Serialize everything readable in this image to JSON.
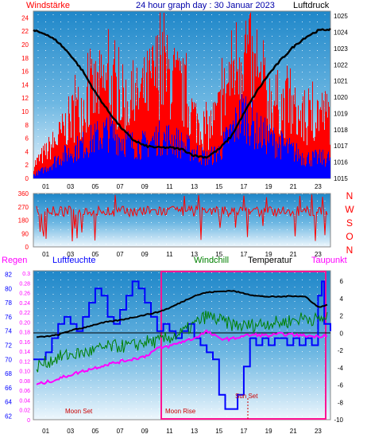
{
  "page": {
    "title": "24 hour graph day : 30 Januar 2023"
  },
  "chart_data": [
    {
      "id": "wind",
      "type": "bar",
      "labels": {
        "left": "Windstärke",
        "right": "Luftdruck"
      },
      "x_ticks": [
        "01",
        "03",
        "05",
        "07",
        "09",
        "11",
        "13",
        "15",
        "17",
        "19",
        "21",
        "23"
      ],
      "y_left_ticks": [
        "0",
        "2",
        "4",
        "6",
        "8",
        "10",
        "12",
        "14",
        "16",
        "18",
        "20",
        "22",
        "24"
      ],
      "y_right_ticks": [
        "1015",
        "1016",
        "1017",
        "1018",
        "1019",
        "1020",
        "1021",
        "1022",
        "1023",
        "1024",
        "1025"
      ],
      "ylim_left": [
        0,
        25
      ],
      "ylim_right": [
        1015,
        1025.3
      ],
      "series": [
        {
          "name": "gust",
          "color": "#ff0000",
          "hour_values": [
            2,
            4,
            6,
            9,
            11,
            13,
            14,
            12,
            11,
            13,
            16,
            15,
            13,
            9,
            7,
            10,
            16,
            20,
            14,
            12,
            11,
            10,
            8,
            10,
            9
          ]
        },
        {
          "name": "wind",
          "color": "#0000ff",
          "hour_values": [
            0.5,
            1.5,
            3,
            4,
            5,
            6,
            7,
            6,
            5,
            5,
            6,
            6,
            5,
            4,
            3,
            4,
            7,
            10,
            7,
            6,
            5,
            4,
            3,
            3,
            3
          ]
        },
        {
          "name": "pressure",
          "color": "#000000",
          "points": [
            [
              0,
              1024.1
            ],
            [
              1,
              1023.9
            ],
            [
              2,
              1023.4
            ],
            [
              3,
              1022.6
            ],
            [
              4,
              1021.6
            ],
            [
              5,
              1020.3
            ],
            [
              6,
              1019.2
            ],
            [
              7,
              1018.2
            ],
            [
              8,
              1017.4
            ],
            [
              9,
              1017.0
            ],
            [
              10,
              1016.9
            ],
            [
              11,
              1016.9
            ],
            [
              12,
              1016.8
            ],
            [
              13,
              1016.4
            ],
            [
              14,
              1016.3
            ],
            [
              15,
              1016.8
            ],
            [
              16,
              1017.6
            ],
            [
              17,
              1019.0
            ],
            [
              18,
              1020.3
            ],
            [
              19,
              1021.4
            ],
            [
              20,
              1022.3
            ],
            [
              21,
              1023.1
            ],
            [
              22,
              1023.7
            ],
            [
              23,
              1024.1
            ],
            [
              24,
              1024.2
            ]
          ]
        }
      ]
    },
    {
      "id": "direction",
      "type": "line",
      "x_ticks": [
        "01",
        "03",
        "05",
        "07",
        "09",
        "11",
        "13",
        "15",
        "17",
        "19",
        "21",
        "23"
      ],
      "y_ticks": [
        "0",
        "90",
        "180",
        "270",
        "360"
      ],
      "right_letters": [
        "N",
        "W",
        "S",
        "O",
        "N"
      ],
      "ylim": [
        0,
        360
      ],
      "series": [
        {
          "name": "direction",
          "color": "#ff0000",
          "center": 240,
          "spread": 35
        }
      ]
    },
    {
      "id": "temp",
      "type": "line",
      "labels": {
        "regen": "Regen",
        "luftfeuchte": "Luftfeuchte",
        "windchill": "Windchill",
        "temperatur": "Temperatur",
        "taupunkt": "Taupunkt"
      },
      "annotations": [
        "Moon Set",
        "Moon Rise",
        "Sun Set"
      ],
      "x_ticks": [
        "01",
        "03",
        "05",
        "07",
        "09",
        "11",
        "13",
        "15",
        "17",
        "19",
        "21",
        "23"
      ],
      "y_rain_ticks": [
        "0",
        "0.02",
        "0.04",
        "0.06",
        "0.08",
        "0.10",
        "0.12",
        "0.14",
        "0.16",
        "0.18",
        "0.20",
        "0.22",
        "0.24",
        "0.26",
        "0.28",
        "0.3"
      ],
      "y_humidity_ticks": [
        "62",
        "64",
        "66",
        "68",
        "70",
        "72",
        "74",
        "76",
        "78",
        "80",
        "82"
      ],
      "y_temp_ticks": [
        "-10",
        "-8",
        "-6",
        "-4",
        "-2",
        "0",
        "2",
        "4",
        "6"
      ],
      "ylim_temp": [
        -10,
        7.2
      ],
      "ylim_humidity": [
        61.5,
        82.5
      ],
      "series": [
        {
          "name": "Luftfeuchte",
          "color": "#0000ff",
          "points": [
            [
              0,
              70
            ],
            [
              1,
              71
            ],
            [
              1.5,
              73
            ],
            [
              2,
              75
            ],
            [
              2.5,
              76
            ],
            [
              3,
              75
            ],
            [
              3.5,
              74
            ],
            [
              4,
              76
            ],
            [
              4.5,
              78
            ],
            [
              5,
              80
            ],
            [
              5.5,
              79
            ],
            [
              6,
              76
            ],
            [
              6.5,
              75
            ],
            [
              7,
              77
            ],
            [
              7.5,
              79
            ],
            [
              8,
              81
            ],
            [
              8.5,
              80
            ],
            [
              9,
              78
            ],
            [
              9.5,
              76
            ],
            [
              10,
              74
            ],
            [
              10.5,
              75
            ],
            [
              11,
              74
            ],
            [
              11.5,
              73
            ],
            [
              12,
              74
            ],
            [
              12.5,
              75
            ],
            [
              13,
              73
            ],
            [
              13.5,
              72
            ],
            [
              14,
              71
            ],
            [
              14.5,
              70
            ],
            [
              15,
              65
            ],
            [
              15.5,
              63
            ],
            [
              16,
              63
            ],
            [
              16.5,
              65
            ],
            [
              17,
              69
            ],
            [
              17.5,
              73
            ],
            [
              18,
              72
            ],
            [
              18.5,
              73
            ],
            [
              19,
              72
            ],
            [
              19.5,
              73
            ],
            [
              20,
              73
            ],
            [
              20.5,
              72
            ],
            [
              21,
              73
            ],
            [
              21.5,
              72
            ],
            [
              22,
              73
            ],
            [
              22.5,
              72
            ],
            [
              23,
              79
            ],
            [
              23.3,
              81
            ],
            [
              23.5,
              75
            ],
            [
              24,
              74
            ]
          ]
        },
        {
          "name": "Temperatur",
          "color": "#000000",
          "points": [
            [
              0,
              -0.5
            ],
            [
              1,
              -0.4
            ],
            [
              2,
              -0.2
            ],
            [
              3,
              0.3
            ],
            [
              4,
              0.6
            ],
            [
              5,
              1.0
            ],
            [
              6,
              1.3
            ],
            [
              7,
              1.5
            ],
            [
              8,
              1.8
            ],
            [
              9,
              2.1
            ],
            [
              10,
              2.4
            ],
            [
              11,
              2.9
            ],
            [
              12,
              3.6
            ],
            [
              13,
              4.3
            ],
            [
              14,
              4.7
            ],
            [
              15,
              4.8
            ],
            [
              16,
              4.9
            ],
            [
              17,
              4.6
            ],
            [
              18,
              4.3
            ],
            [
              19,
              4.2
            ],
            [
              20,
              4.2
            ],
            [
              21,
              4.3
            ],
            [
              22,
              4.2
            ],
            [
              23,
              3.0
            ],
            [
              24,
              3.3
            ]
          ]
        },
        {
          "name": "Windchill",
          "color": "#008000",
          "points": [
            [
              0,
              -4
            ],
            [
              1,
              -3.4
            ],
            [
              2,
              -2.8
            ],
            [
              3,
              -2.5
            ],
            [
              4,
              -2.3
            ],
            [
              5,
              -2
            ],
            [
              6,
              -1.6
            ],
            [
              7,
              -1.5
            ],
            [
              8,
              -1.5
            ],
            [
              9,
              -1
            ],
            [
              10,
              -1
            ],
            [
              11,
              -0.5
            ],
            [
              12,
              0
            ],
            [
              13,
              1
            ],
            [
              14,
              2
            ],
            [
              15,
              1.5
            ],
            [
              16,
              1
            ],
            [
              17,
              0.8
            ],
            [
              18,
              1
            ],
            [
              19,
              1.2
            ],
            [
              20,
              1.2
            ],
            [
              21,
              1.5
            ],
            [
              22,
              1.8
            ],
            [
              23,
              1.5
            ],
            [
              24,
              2
            ]
          ]
        },
        {
          "name": "Taupunkt",
          "color": "#ff00ff",
          "points": [
            [
              0,
              -6
            ],
            [
              1,
              -5.7
            ],
            [
              2,
              -5.3
            ],
            [
              3,
              -4.8
            ],
            [
              4,
              -4.4
            ],
            [
              5,
              -4
            ],
            [
              6,
              -3.6
            ],
            [
              7,
              -3.3
            ],
            [
              8,
              -3
            ],
            [
              9,
              -2.7
            ],
            [
              10,
              -1.8
            ],
            [
              11,
              -1.5
            ],
            [
              12,
              -1
            ],
            [
              13,
              -0.6
            ],
            [
              14,
              0.2
            ],
            [
              15,
              -0.6
            ],
            [
              16,
              -0.7
            ],
            [
              17,
              -0.3
            ],
            [
              18,
              -0.2
            ],
            [
              19,
              -0.3
            ],
            [
              20,
              -0.1
            ],
            [
              21,
              -0.2
            ],
            [
              22,
              -0.3
            ],
            [
              23,
              -0.4
            ],
            [
              24,
              -0.1
            ]
          ]
        }
      ]
    }
  ]
}
